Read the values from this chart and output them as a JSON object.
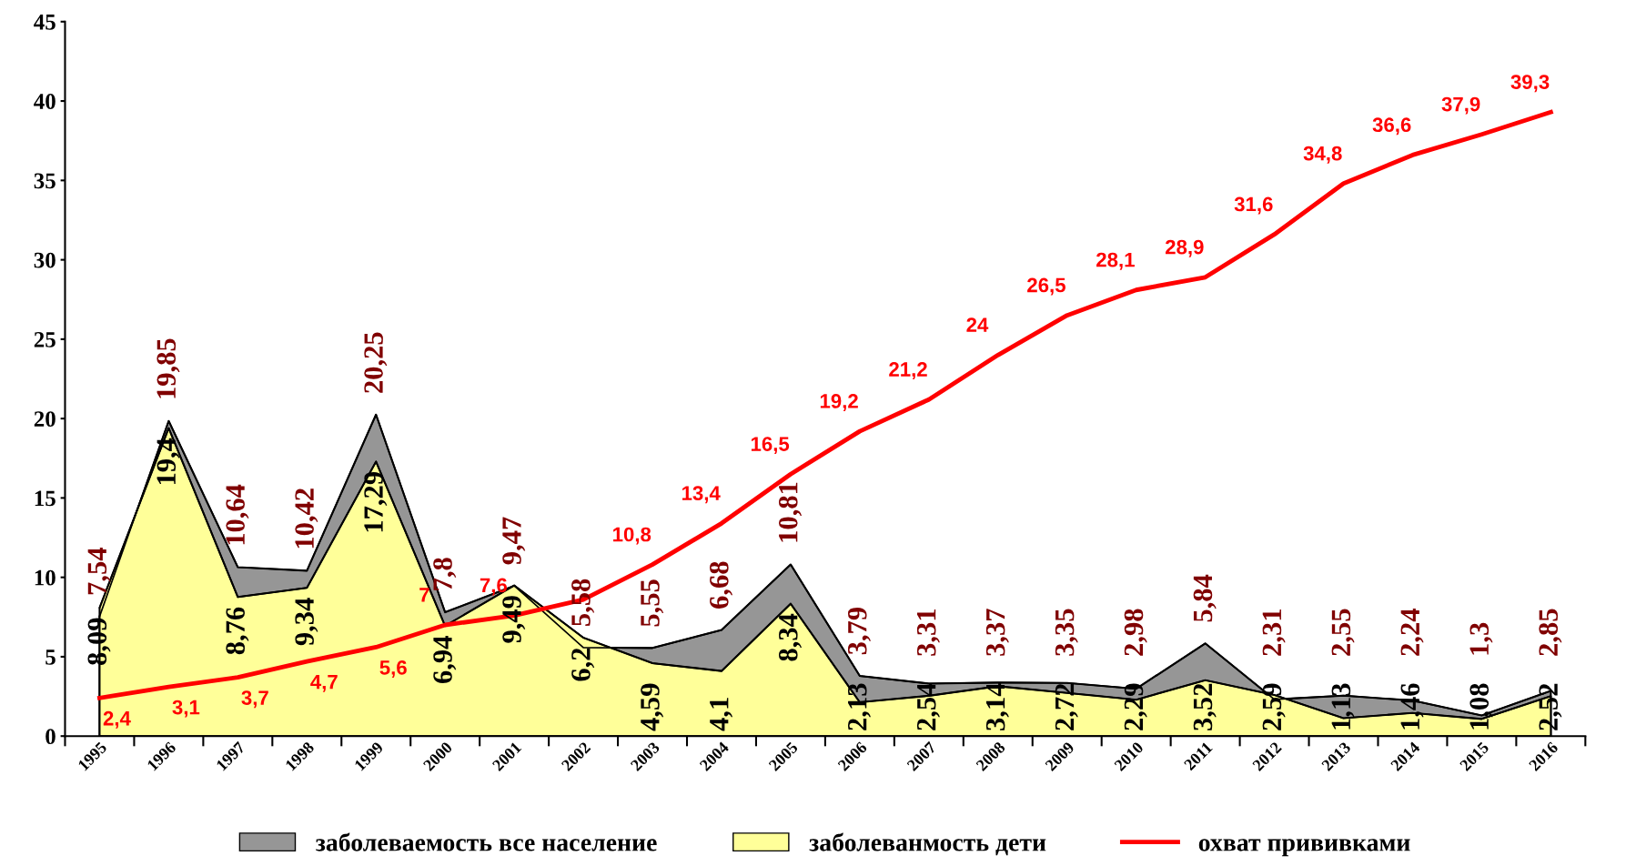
{
  "chart_data": {
    "type": "area",
    "categories": [
      "1995",
      "1996",
      "1997",
      "1998",
      "1999",
      "2000",
      "2001",
      "2002",
      "2003",
      "2004",
      "2005",
      "2006",
      "2007",
      "2008",
      "2009",
      "2010",
      "2011",
      "2012",
      "2013",
      "2014",
      "2015",
      "2016"
    ],
    "series": [
      {
        "name": "заболеваемость все население",
        "color": "#969696",
        "values": [
          7.54,
          19.85,
          10.64,
          10.42,
          20.25,
          7.8,
          9.47,
          5.58,
          5.55,
          6.68,
          10.81,
          3.79,
          3.31,
          3.37,
          3.35,
          2.98,
          5.84,
          2.31,
          2.55,
          2.24,
          1.3,
          2.85
        ],
        "value_labels": [
          "7,54",
          "19,85",
          "10,64",
          "10,42",
          "20,25",
          "7,8",
          "9,47",
          "5,58",
          "5,55",
          "6,68",
          "10,81",
          "3,79",
          "3,31",
          "3,37",
          "3,35",
          "2,98",
          "5,84",
          "2,31",
          "2,55",
          "2,24",
          "1,3",
          "2,85"
        ]
      },
      {
        "name": "заболеванмость дети",
        "color": "#ffff99",
        "values": [
          8.09,
          19.4,
          8.76,
          9.34,
          17.29,
          6.94,
          9.49,
          6.2,
          4.59,
          4.1,
          8.34,
          2.13,
          2.54,
          3.14,
          2.72,
          2.29,
          3.52,
          2.59,
          1.13,
          1.46,
          1.08,
          2.52
        ],
        "value_labels": [
          "8,09",
          "19,4",
          "8,76",
          "9,34",
          "17,29",
          "6,94",
          "9,49",
          "6,2",
          "4,59",
          "4,1",
          "8,34",
          "2,13",
          "2,54",
          "3,14",
          "2,72",
          "2,29",
          "3,52",
          "2,59",
          "1,13",
          "1,46",
          "1,08",
          "2,52"
        ]
      },
      {
        "name": "охват прививками",
        "color": "#ff0000",
        "type": "line",
        "values": [
          2.4,
          3.1,
          3.7,
          4.7,
          5.6,
          7,
          7.6,
          8.6,
          10.8,
          13.4,
          16.5,
          19.2,
          21.2,
          24,
          26.5,
          28.1,
          28.9,
          31.6,
          34.8,
          36.6,
          37.9,
          39.3
        ],
        "value_labels": [
          "2,4",
          "3,1",
          "3,7",
          "4,7",
          "5,6",
          "7",
          "7,6",
          null,
          "10,8",
          "13,4",
          "16,5",
          "19,2",
          "21,2",
          "24",
          "26,5",
          "28,1",
          "28,9",
          "31,6",
          "34,8",
          "36,6",
          "37,9",
          "39,3"
        ]
      }
    ],
    "ylim": [
      0,
      45
    ],
    "yticks": [
      0,
      5,
      10,
      15,
      20,
      25,
      30,
      35,
      40,
      45
    ],
    "grid": false,
    "legend": "bottom",
    "marker": "none"
  }
}
